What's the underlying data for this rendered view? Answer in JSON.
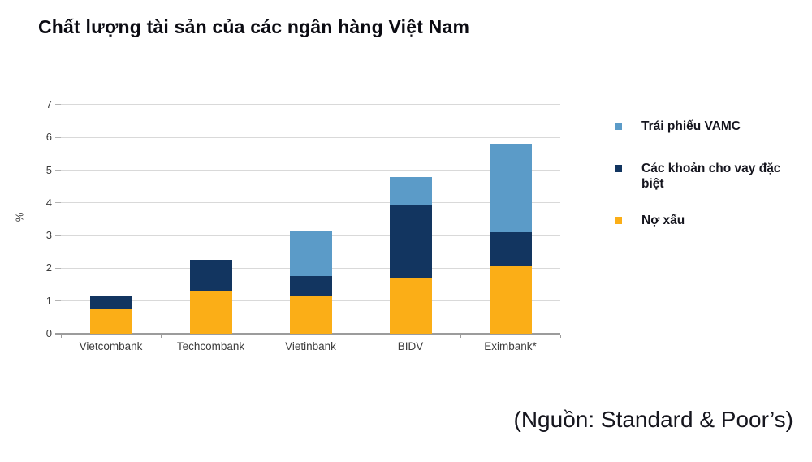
{
  "title": "Chất lượng tài sản của các ngân hàng Việt Nam",
  "source_note": "(Nguồn: Standard & Poor’s)",
  "chart_data": {
    "type": "bar",
    "stacked": true,
    "title": "Chất lượng tài sản của các ngân hàng Việt Nam",
    "ylabel": "%",
    "ylim": [
      0,
      7
    ],
    "yticks": [
      0,
      1,
      2,
      3,
      4,
      5,
      6,
      7
    ],
    "grid": true,
    "legend_position": "right",
    "categories": [
      "Vietcombank",
      "Techcombank",
      "Vietinbank",
      "BIDV",
      "Eximbank*"
    ],
    "series": [
      {
        "name": "Nợ xấu",
        "color": "#FBAE17",
        "values": [
          0.75,
          1.3,
          1.15,
          1.7,
          2.05
        ]
      },
      {
        "name": "Các khoản cho vay đặc biệt",
        "color": "#123560",
        "values": [
          0.4,
          0.95,
          0.6,
          2.25,
          1.05
        ]
      },
      {
        "name": "Trái phiếu VAMC",
        "color": "#5B9BC8",
        "values": [
          0,
          0,
          1.4,
          0.85,
          2.7
        ]
      }
    ]
  },
  "legend": {
    "items": [
      {
        "label": "Trái phiếu VAMC",
        "color": "#5B9BC8"
      },
      {
        "label": "Các khoản cho vay đặc biệt",
        "color": "#123560"
      },
      {
        "label": "Nợ xấu",
        "color": "#FBAE17"
      }
    ]
  }
}
